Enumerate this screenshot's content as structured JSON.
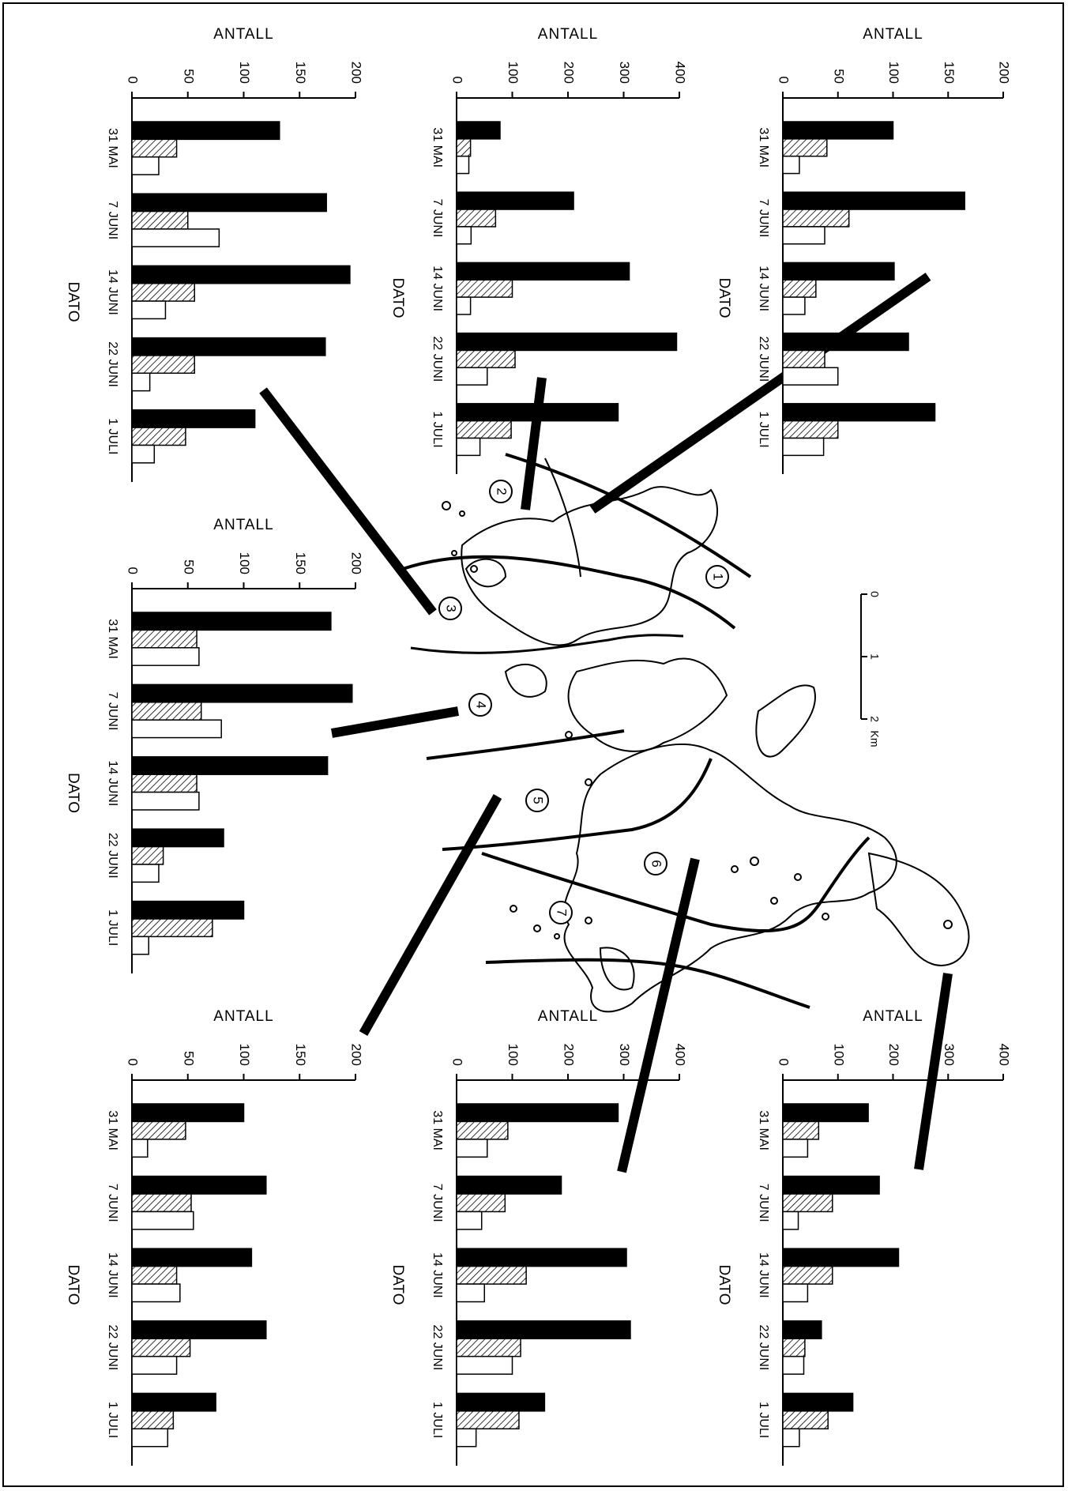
{
  "colors": {
    "series_a": "#000000",
    "series_b_hatch": "#000000",
    "series_c": "#ffffff",
    "line": "#000000"
  },
  "map": {
    "zone_labels": [
      "1",
      "2",
      "3",
      "4",
      "5",
      "6",
      "7"
    ],
    "scale": {
      "tick_labels": [
        "0",
        "1",
        "2"
      ],
      "unit": "Km"
    }
  },
  "chart_data": [
    {
      "type": "bar",
      "id": "zone-1",
      "ylabel": "ANTALL",
      "xlabel": "DATO",
      "categories": [
        "31 MAI",
        "7 JUNI",
        "14 JUNI",
        "22 JUNI",
        "1 JULI"
      ],
      "ylim": [
        0,
        200
      ],
      "yticks": [
        "0",
        "50",
        "100",
        "150",
        "200"
      ],
      "series": [
        {
          "values": [
            100,
            165,
            101,
            114,
            138
          ],
          "style": "solid-black"
        },
        {
          "values": [
            40,
            60,
            30,
            38,
            50
          ],
          "style": "hatched"
        },
        {
          "values": [
            15,
            38,
            20,
            50,
            37
          ],
          "style": "white"
        }
      ]
    },
    {
      "type": "bar",
      "id": "zone-2",
      "ylabel": "ANTALL",
      "xlabel": "DATO",
      "categories": [
        "31 MAI",
        "7 JUNI",
        "14 JUNI",
        "22 JUNI",
        "1 JULI"
      ],
      "ylim": [
        0,
        400
      ],
      "yticks": [
        "0",
        "100",
        "200",
        "300",
        "400"
      ],
      "series": [
        {
          "values": [
            78,
            210,
            310,
            395,
            290
          ],
          "style": "solid-black"
        },
        {
          "values": [
            25,
            70,
            100,
            105,
            98
          ],
          "style": "hatched"
        },
        {
          "values": [
            22,
            26,
            25,
            55,
            42
          ],
          "style": "white"
        }
      ]
    },
    {
      "type": "bar",
      "id": "zone-3",
      "ylabel": "ANTALL",
      "xlabel": "DATO",
      "categories": [
        "31 MAI",
        "7 JUNI",
        "14 JUNI",
        "22 JUNI",
        "1 JULI"
      ],
      "ylim": [
        0,
        200
      ],
      "yticks": [
        "0",
        "50",
        "100",
        "150",
        "200"
      ],
      "series": [
        {
          "values": [
            132,
            174,
            195,
            173,
            110
          ],
          "style": "solid-black"
        },
        {
          "values": [
            40,
            50,
            56,
            56,
            48
          ],
          "style": "hatched"
        },
        {
          "values": [
            24,
            78,
            30,
            16,
            20
          ],
          "style": "white"
        }
      ]
    },
    {
      "type": "bar",
      "id": "zone-4",
      "ylabel": "ANTALL",
      "xlabel": "DATO",
      "categories": [
        "31 MAI",
        "7 JUNI",
        "14 JUNI",
        "22 JUNI",
        "1 JULI"
      ],
      "ylim": [
        0,
        200
      ],
      "yticks": [
        "0",
        "50",
        "100",
        "150",
        "200"
      ],
      "series": [
        {
          "values": [
            178,
            197,
            175,
            82,
            100
          ],
          "style": "solid-black"
        },
        {
          "values": [
            58,
            62,
            58,
            28,
            72
          ],
          "style": "hatched"
        },
        {
          "values": [
            60,
            80,
            60,
            24,
            15
          ],
          "style": "white"
        }
      ]
    },
    {
      "type": "bar",
      "id": "zone-5",
      "ylabel": "ANTALL",
      "xlabel": "DATO",
      "categories": [
        "31 MAI",
        "7 JUNI",
        "14 JUNI",
        "22 JUNI",
        "1 JULI"
      ],
      "ylim": [
        0,
        200
      ],
      "yticks": [
        "0",
        "50",
        "100",
        "150",
        "200"
      ],
      "series": [
        {
          "values": [
            100,
            120,
            107,
            120,
            75
          ],
          "style": "solid-black"
        },
        {
          "values": [
            48,
            53,
            40,
            52,
            37
          ],
          "style": "hatched"
        },
        {
          "values": [
            14,
            55,
            43,
            40,
            32
          ],
          "style": "white"
        }
      ]
    },
    {
      "type": "bar",
      "id": "zone-6",
      "ylabel": "ANTALL",
      "xlabel": "DATO",
      "categories": [
        "31 MAI",
        "7 JUNI",
        "14 JUNI",
        "22 JUNI",
        "1 JULI"
      ],
      "ylim": [
        0,
        400
      ],
      "yticks": [
        "0",
        "100",
        "200",
        "300",
        "400"
      ],
      "series": [
        {
          "values": [
            290,
            188,
            305,
            312,
            158
          ],
          "style": "solid-black"
        },
        {
          "values": [
            92,
            87,
            125,
            115,
            112
          ],
          "style": "hatched"
        },
        {
          "values": [
            55,
            45,
            50,
            100,
            35
          ],
          "style": "white"
        }
      ]
    },
    {
      "type": "bar",
      "id": "zone-7",
      "ylabel": "ANTALL",
      "xlabel": "DATO",
      "categories": [
        "31 MAI",
        "7 JUNI",
        "14 JUNI",
        "22 JUNI",
        "1 JULI"
      ],
      "ylim": [
        0,
        400
      ],
      "yticks": [
        "0",
        "100",
        "200",
        "300",
        "400"
      ],
      "series": [
        {
          "values": [
            155,
            175,
            210,
            70,
            127
          ],
          "style": "solid-black"
        },
        {
          "values": [
            65,
            90,
            90,
            40,
            82
          ],
          "style": "hatched"
        },
        {
          "values": [
            45,
            28,
            45,
            38,
            30
          ],
          "style": "white"
        }
      ]
    }
  ]
}
